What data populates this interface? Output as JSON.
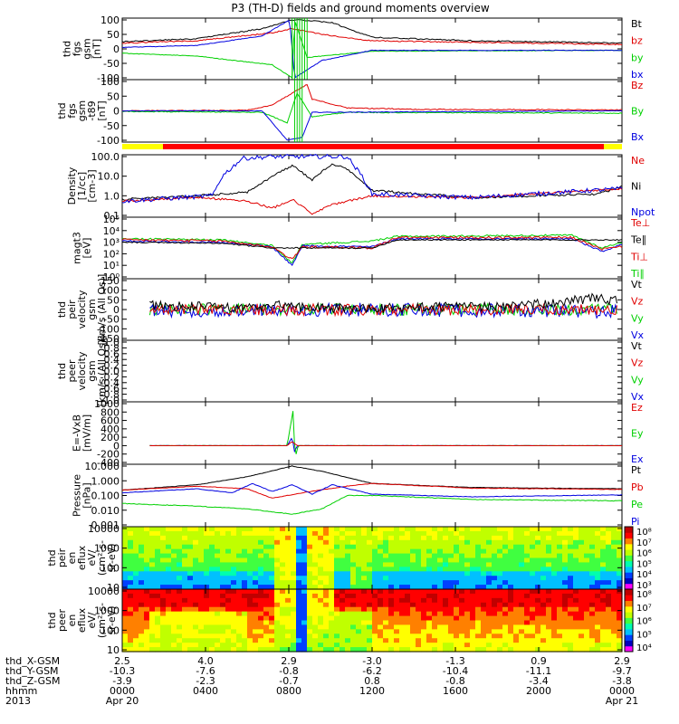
{
  "title": "P3 (TH-D) fields and ground moments overview",
  "colors": {
    "black": "#000000",
    "red": "#e00000",
    "green": "#00d000",
    "blue": "#0000e0",
    "bar_yellow": "#ffff00",
    "bar_red": "#ff0000"
  },
  "colorbar_stops": [
    "#ff00ff",
    "#0000c0",
    "#0040ff",
    "#00c0ff",
    "#00ffb0",
    "#40ff40",
    "#c0ff00",
    "#ffff00",
    "#ff8000",
    "#ff0000",
    "#c00000"
  ],
  "panels": [
    {
      "id": "fgs",
      "ylabel": [
        "thd",
        "fgs",
        "gsm",
        "[nT]"
      ],
      "ticks": [
        "100",
        "50",
        "0",
        "-50",
        "-100"
      ],
      "legend": [
        {
          "t": "Bt",
          "c": "black"
        },
        {
          "t": "bz",
          "c": "red"
        },
        {
          "t": "by",
          "c": "green"
        },
        {
          "t": "bx",
          "c": "blue"
        }
      ]
    },
    {
      "id": "fgs_t89",
      "ylabel": [
        "thd",
        "fgs",
        "gsm",
        "-t89",
        "[nT]"
      ],
      "ticks": [
        "100",
        "50",
        "0",
        "-50",
        "-100"
      ],
      "legend": [
        {
          "t": "Bz",
          "c": "red"
        },
        {
          "t": "By",
          "c": "green"
        },
        {
          "t": "Bx",
          "c": "blue"
        }
      ]
    },
    {
      "id": "density",
      "ylabel": [
        "Density",
        "[1/cc]",
        "[cm-3]"
      ],
      "ticks": [
        "100.0",
        "10.0",
        "1.0",
        "0.1"
      ],
      "legend": [
        {
          "t": "Ne",
          "c": "red"
        },
        {
          "t": "Ni",
          "c": "black"
        },
        {
          "t": "Npot",
          "c": "blue"
        }
      ]
    },
    {
      "id": "temp",
      "ylabel": [
        "magt3",
        "[eV]"
      ],
      "ticks": [
        "10⁵",
        "10⁴",
        "10³",
        "10²",
        "10¹",
        "10⁰"
      ],
      "legend": [
        {
          "t": "Te⊥",
          "c": "red"
        },
        {
          "t": "Te∥",
          "c": "black"
        },
        {
          "t": "Ti⊥",
          "c": "red"
        },
        {
          "t": "Ti∥",
          "c": "green"
        }
      ]
    },
    {
      "id": "peir_vel",
      "ylabel": [
        "thd",
        "peir",
        "velocity",
        "gsm",
        "[km/s (All Qs)]"
      ],
      "ticks": [
        "150",
        "100",
        "50",
        "0",
        "-50",
        "-100",
        "-150"
      ],
      "legend": [
        {
          "t": "Vt",
          "c": "black"
        },
        {
          "t": "Vz",
          "c": "red"
        },
        {
          "t": "Vy",
          "c": "green"
        },
        {
          "t": "Vx",
          "c": "blue"
        }
      ]
    },
    {
      "id": "peer_vel",
      "ylabel": [
        "thd",
        "peer",
        "velocity",
        "gsm",
        "[km/s (All Qs)]"
      ],
      "ticks": [
        "1.0",
        "0.8",
        "0.6",
        "0.4",
        "0.2",
        "0.0",
        "-0.2",
        "-0.4",
        "-0.6",
        "-0.8",
        "-1.0"
      ],
      "legend": [
        {
          "t": "Vt",
          "c": "black"
        },
        {
          "t": "Vz",
          "c": "red"
        },
        {
          "t": "Vy",
          "c": "green"
        },
        {
          "t": "Vx",
          "c": "blue"
        }
      ]
    },
    {
      "id": "efield",
      "ylabel": [
        "E=-VxB",
        "[mV/m]"
      ],
      "ticks": [
        "1000",
        "800",
        "600",
        "400",
        "200",
        "0",
        "-200",
        "-400"
      ],
      "legend": [
        {
          "t": "Ez",
          "c": "red"
        },
        {
          "t": "Ey",
          "c": "green"
        },
        {
          "t": "Ex",
          "c": "blue"
        }
      ]
    },
    {
      "id": "pressure",
      "ylabel": [
        "Pressure",
        "[nPa]"
      ],
      "ticks": [
        "10.000",
        "1.000",
        "0.100",
        "0.010",
        "0.001"
      ],
      "legend": [
        {
          "t": "Pt",
          "c": "black"
        },
        {
          "t": "Pb",
          "c": "red"
        },
        {
          "t": "Pe",
          "c": "green"
        },
        {
          "t": "Pi",
          "c": "blue"
        }
      ]
    },
    {
      "id": "peir_spec",
      "ylabel": [
        "thd",
        "peir",
        "en",
        "eflux",
        "eV/",
        "(cm²-s-",
        "sr-eV)"
      ],
      "ticks": [
        "10000",
        "1000",
        "100",
        "10"
      ],
      "colorbar": [
        "10⁸",
        "10⁷",
        "10⁶",
        "10⁵",
        "10⁴",
        "10³"
      ]
    },
    {
      "id": "peer_spec",
      "ylabel": [
        "thd",
        "peer",
        "en",
        "eflux",
        "eV/",
        "(cm²-s-",
        "sr-eV)"
      ],
      "ticks": [
        "10000",
        "1000",
        "100",
        "10"
      ],
      "colorbar": [
        "10⁸",
        "10⁷",
        "10⁶",
        "10⁵",
        "10⁴"
      ]
    }
  ],
  "footer": {
    "row_labels": [
      "thd_X-GSM",
      "thd_Y-GSM",
      "thd_Z-GSM",
      "hhmm",
      "2013"
    ],
    "columns": [
      {
        "values": [
          "2.5",
          "-10.3",
          "-3.9",
          "0000",
          "Apr 20"
        ]
      },
      {
        "values": [
          "4.0",
          "-7.6",
          "-2.3",
          "0400",
          ""
        ]
      },
      {
        "values": [
          "2.9",
          "-0.8",
          "-0.7",
          "0800",
          ""
        ]
      },
      {
        "values": [
          "-3.0",
          "-6.2",
          "0.8",
          "1200",
          ""
        ]
      },
      {
        "values": [
          "-1.3",
          "-10.4",
          "-0.8",
          "1600",
          ""
        ]
      },
      {
        "values": [
          "0.9",
          "-11.1",
          "-3.4",
          "2000",
          ""
        ]
      },
      {
        "values": [
          "2.9",
          "-9.7",
          "-3.8",
          "0000",
          "Apr 21"
        ]
      }
    ]
  },
  "chart_data": {
    "type": "line",
    "title": "P3 (TH-D) fields and ground moments overview",
    "x_axis": {
      "label": "hhmm",
      "ticks": [
        "0000",
        "0400",
        "0800",
        "1200",
        "1600",
        "2000",
        "0000"
      ],
      "start": "2013-04-20 00:00",
      "end": "2013-04-21 00:00"
    },
    "series_notes": [
      {
        "panel": "fgs",
        "name": "Bt",
        "x": [
          "0000",
          "0400",
          "0600",
          "0800",
          "0830",
          "1000",
          "1200",
          "1600",
          "2000",
          "0000"
        ],
        "values": [
          25,
          40,
          70,
          100,
          100,
          90,
          40,
          25,
          25,
          20
        ]
      },
      {
        "panel": "fgs",
        "name": "bz",
        "x": [
          "0000",
          "0400",
          "0800",
          "1200",
          "1600",
          "2000",
          "0000"
        ],
        "values": [
          20,
          30,
          60,
          30,
          20,
          18,
          15
        ]
      },
      {
        "panel": "fgs",
        "name": "by",
        "x": [
          "0000",
          "0400",
          "0700",
          "0800",
          "0830",
          "1000",
          "1200",
          "2000",
          "0000"
        ],
        "values": [
          -15,
          -25,
          -60,
          -100,
          100,
          -10,
          -8,
          -5,
          -5
        ]
      },
      {
        "panel": "fgs",
        "name": "bx",
        "x": [
          "0000",
          "0400",
          "0600",
          "0800",
          "0830",
          "1000",
          "1200",
          "2000",
          "0000"
        ],
        "values": [
          5,
          10,
          40,
          100,
          -100,
          -40,
          -5,
          0,
          -5
        ]
      },
      {
        "panel": "density",
        "name": "Ni",
        "x": [
          "0000",
          "0400",
          "0600",
          "0800",
          "0900",
          "1000",
          "1200",
          "1600",
          "2000",
          "0000"
        ],
        "values": [
          0.5,
          0.8,
          1.0,
          30,
          50,
          40,
          1.0,
          0.6,
          0.8,
          3
        ]
      },
      {
        "panel": "density",
        "name": "Ne",
        "x": [
          "0000",
          "0400",
          "0600",
          "0800",
          "0900",
          "1000",
          "1200",
          "1600",
          "2000",
          "0000"
        ],
        "values": [
          0.4,
          0.6,
          0.3,
          0.2,
          0.1,
          0.3,
          0.8,
          0.6,
          0.7,
          2
        ]
      },
      {
        "panel": "density",
        "name": "Npot",
        "x": [
          "0000",
          "0400",
          "0500",
          "0700",
          "0800",
          "0900",
          "1000",
          "1100",
          "1200",
          "2000",
          "0000"
        ],
        "values": [
          0.4,
          0.6,
          10,
          100,
          100,
          100,
          100,
          100,
          1.0,
          0.8,
          2
        ]
      },
      {
        "panel": "pressure",
        "name": "Pt",
        "x": [
          "0000",
          "0400",
          "0800",
          "0830",
          "1000",
          "1200",
          "1600",
          "2000",
          "0000"
        ],
        "values": [
          0.3,
          0.8,
          8,
          15,
          5,
          0.8,
          0.4,
          0.4,
          0.3
        ]
      },
      {
        "panel": "pressure",
        "name": "Pb",
        "x": [
          "0000",
          "0400",
          "0800",
          "1000",
          "1200",
          "1600",
          "2000",
          "0000"
        ],
        "values": [
          0.25,
          0.6,
          0.1,
          0.2,
          0.8,
          0.35,
          0.3,
          0.25
        ]
      },
      {
        "panel": "pressure",
        "name": "Pe",
        "x": [
          "0000",
          "0400",
          "0800",
          "1000",
          "1200",
          "1600",
          "2000",
          "0000"
        ],
        "values": [
          0.03,
          0.02,
          0.02,
          0.01,
          0.1,
          0.05,
          0.04,
          0.04
        ]
      },
      {
        "panel": "pressure",
        "name": "Pi",
        "x": [
          "0000",
          "0400",
          "0800",
          "1000",
          "1200",
          "1600",
          "2000",
          "0000"
        ],
        "values": [
          0.2,
          0.3,
          0.8,
          0.2,
          0.4,
          0.15,
          0.12,
          0.15
        ]
      }
    ]
  }
}
